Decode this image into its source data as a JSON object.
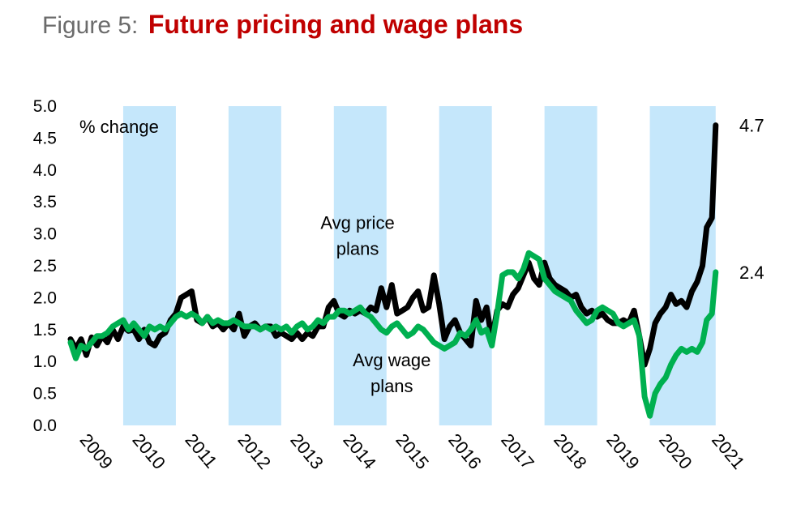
{
  "figure": {
    "prefix": "Figure 5:",
    "title": "Future pricing and wage plans"
  },
  "chart_data": {
    "type": "line",
    "ylim": [
      0,
      5
    ],
    "xlim": [
      2009.0,
      2021.7
    ],
    "yticks": [
      "0.0",
      "0.5",
      "1.0",
      "1.5",
      "2.0",
      "2.5",
      "3.0",
      "3.5",
      "4.0",
      "4.5",
      "5.0"
    ],
    "xticks": [
      "2009",
      "2010",
      "2011",
      "2012",
      "2013",
      "2014",
      "2015",
      "2016",
      "2017",
      "2018",
      "2019",
      "2020",
      "2021"
    ],
    "unit_label": "% change",
    "grid": false,
    "shaded_periods": [
      [
        2010.0,
        2011.0
      ],
      [
        2012.0,
        2013.0
      ],
      [
        2014.0,
        2015.0
      ],
      [
        2016.0,
        2017.0
      ],
      [
        2018.0,
        2019.0
      ],
      [
        2020.0,
        2021.25
      ]
    ],
    "shade_color": "#c5e7fb",
    "series": [
      {
        "name": "Avg price plans",
        "color": "#000000",
        "end_label": "4.7",
        "points": [
          [
            2009.0,
            1.35
          ],
          [
            2009.1,
            1.2
          ],
          [
            2009.2,
            1.35
          ],
          [
            2009.3,
            1.1
          ],
          [
            2009.4,
            1.38
          ],
          [
            2009.5,
            1.25
          ],
          [
            2009.6,
            1.4
          ],
          [
            2009.7,
            1.3
          ],
          [
            2009.8,
            1.5
          ],
          [
            2009.9,
            1.35
          ],
          [
            2010.0,
            1.55
          ],
          [
            2010.1,
            1.48
          ],
          [
            2010.2,
            1.5
          ],
          [
            2010.3,
            1.35
          ],
          [
            2010.4,
            1.5
          ],
          [
            2010.5,
            1.3
          ],
          [
            2010.6,
            1.25
          ],
          [
            2010.7,
            1.4
          ],
          [
            2010.8,
            1.45
          ],
          [
            2010.9,
            1.65
          ],
          [
            2011.0,
            1.75
          ],
          [
            2011.1,
            2.0
          ],
          [
            2011.2,
            2.05
          ],
          [
            2011.3,
            2.1
          ],
          [
            2011.4,
            1.65
          ],
          [
            2011.5,
            1.6
          ],
          [
            2011.6,
            1.7
          ],
          [
            2011.7,
            1.55
          ],
          [
            2011.8,
            1.6
          ],
          [
            2011.9,
            1.5
          ],
          [
            2012.0,
            1.6
          ],
          [
            2012.1,
            1.5
          ],
          [
            2012.2,
            1.75
          ],
          [
            2012.3,
            1.4
          ],
          [
            2012.4,
            1.55
          ],
          [
            2012.5,
            1.6
          ],
          [
            2012.6,
            1.5
          ],
          [
            2012.7,
            1.55
          ],
          [
            2012.8,
            1.55
          ],
          [
            2012.9,
            1.4
          ],
          [
            2013.0,
            1.45
          ],
          [
            2013.1,
            1.4
          ],
          [
            2013.2,
            1.35
          ],
          [
            2013.3,
            1.45
          ],
          [
            2013.4,
            1.35
          ],
          [
            2013.5,
            1.45
          ],
          [
            2013.6,
            1.4
          ],
          [
            2013.7,
            1.55
          ],
          [
            2013.8,
            1.55
          ],
          [
            2013.9,
            1.85
          ],
          [
            2014.0,
            1.95
          ],
          [
            2014.1,
            1.75
          ],
          [
            2014.2,
            1.7
          ],
          [
            2014.3,
            1.8
          ],
          [
            2014.4,
            1.75
          ],
          [
            2014.5,
            1.8
          ],
          [
            2014.6,
            1.75
          ],
          [
            2014.7,
            1.85
          ],
          [
            2014.8,
            1.8
          ],
          [
            2014.9,
            2.15
          ],
          [
            2015.0,
            1.85
          ],
          [
            2015.1,
            2.2
          ],
          [
            2015.2,
            1.75
          ],
          [
            2015.3,
            1.8
          ],
          [
            2015.4,
            1.85
          ],
          [
            2015.5,
            2.0
          ],
          [
            2015.6,
            2.1
          ],
          [
            2015.7,
            1.8
          ],
          [
            2015.8,
            1.85
          ],
          [
            2015.9,
            2.35
          ],
          [
            2016.0,
            1.9
          ],
          [
            2016.1,
            1.35
          ],
          [
            2016.2,
            1.55
          ],
          [
            2016.3,
            1.65
          ],
          [
            2016.4,
            1.45
          ],
          [
            2016.5,
            1.35
          ],
          [
            2016.6,
            1.25
          ],
          [
            2016.7,
            1.95
          ],
          [
            2016.8,
            1.65
          ],
          [
            2016.9,
            1.85
          ],
          [
            2017.0,
            1.35
          ],
          [
            2017.1,
            1.8
          ],
          [
            2017.2,
            1.9
          ],
          [
            2017.3,
            1.85
          ],
          [
            2017.4,
            2.05
          ],
          [
            2017.5,
            2.15
          ],
          [
            2017.6,
            2.35
          ],
          [
            2017.7,
            2.55
          ],
          [
            2017.8,
            2.3
          ],
          [
            2017.9,
            2.2
          ],
          [
            2018.0,
            2.55
          ],
          [
            2018.1,
            2.3
          ],
          [
            2018.2,
            2.2
          ],
          [
            2018.3,
            2.15
          ],
          [
            2018.4,
            2.1
          ],
          [
            2018.5,
            2.0
          ],
          [
            2018.6,
            2.05
          ],
          [
            2018.7,
            1.85
          ],
          [
            2018.8,
            1.75
          ],
          [
            2018.9,
            1.8
          ],
          [
            2019.0,
            1.7
          ],
          [
            2019.1,
            1.75
          ],
          [
            2019.2,
            1.65
          ],
          [
            2019.3,
            1.6
          ],
          [
            2019.4,
            1.6
          ],
          [
            2019.5,
            1.65
          ],
          [
            2019.6,
            1.6
          ],
          [
            2019.7,
            1.8
          ],
          [
            2019.8,
            1.4
          ],
          [
            2019.9,
            0.95
          ],
          [
            2020.0,
            1.2
          ],
          [
            2020.1,
            1.6
          ],
          [
            2020.2,
            1.75
          ],
          [
            2020.3,
            1.85
          ],
          [
            2020.4,
            2.05
          ],
          [
            2020.5,
            1.9
          ],
          [
            2020.6,
            1.95
          ],
          [
            2020.7,
            1.85
          ],
          [
            2020.8,
            2.1
          ],
          [
            2020.9,
            2.25
          ],
          [
            2021.0,
            2.5
          ],
          [
            2021.08,
            3.1
          ],
          [
            2021.18,
            3.25
          ],
          [
            2021.25,
            4.7
          ]
        ]
      },
      {
        "name": "Avg wage plans",
        "color": "#00b050",
        "end_label": "2.4",
        "points": [
          [
            2009.0,
            1.3
          ],
          [
            2009.1,
            1.05
          ],
          [
            2009.2,
            1.25
          ],
          [
            2009.3,
            1.2
          ],
          [
            2009.4,
            1.3
          ],
          [
            2009.5,
            1.4
          ],
          [
            2009.6,
            1.4
          ],
          [
            2009.7,
            1.45
          ],
          [
            2009.8,
            1.55
          ],
          [
            2009.9,
            1.6
          ],
          [
            2010.0,
            1.65
          ],
          [
            2010.1,
            1.5
          ],
          [
            2010.2,
            1.6
          ],
          [
            2010.3,
            1.5
          ],
          [
            2010.4,
            1.4
          ],
          [
            2010.5,
            1.55
          ],
          [
            2010.6,
            1.5
          ],
          [
            2010.7,
            1.55
          ],
          [
            2010.8,
            1.5
          ],
          [
            2010.9,
            1.6
          ],
          [
            2011.0,
            1.7
          ],
          [
            2011.1,
            1.75
          ],
          [
            2011.2,
            1.7
          ],
          [
            2011.3,
            1.75
          ],
          [
            2011.4,
            1.7
          ],
          [
            2011.5,
            1.6
          ],
          [
            2011.6,
            1.7
          ],
          [
            2011.7,
            1.6
          ],
          [
            2011.8,
            1.65
          ],
          [
            2011.9,
            1.6
          ],
          [
            2012.0,
            1.6
          ],
          [
            2012.1,
            1.65
          ],
          [
            2012.2,
            1.6
          ],
          [
            2012.3,
            1.55
          ],
          [
            2012.4,
            1.55
          ],
          [
            2012.5,
            1.55
          ],
          [
            2012.6,
            1.5
          ],
          [
            2012.7,
            1.55
          ],
          [
            2012.8,
            1.5
          ],
          [
            2012.9,
            1.55
          ],
          [
            2013.0,
            1.5
          ],
          [
            2013.1,
            1.55
          ],
          [
            2013.2,
            1.45
          ],
          [
            2013.3,
            1.55
          ],
          [
            2013.4,
            1.6
          ],
          [
            2013.5,
            1.5
          ],
          [
            2013.6,
            1.55
          ],
          [
            2013.7,
            1.65
          ],
          [
            2013.8,
            1.6
          ],
          [
            2013.9,
            1.7
          ],
          [
            2014.0,
            1.7
          ],
          [
            2014.1,
            1.8
          ],
          [
            2014.2,
            1.8
          ],
          [
            2014.3,
            1.75
          ],
          [
            2014.4,
            1.8
          ],
          [
            2014.5,
            1.85
          ],
          [
            2014.6,
            1.75
          ],
          [
            2014.7,
            1.7
          ],
          [
            2014.8,
            1.6
          ],
          [
            2014.9,
            1.5
          ],
          [
            2015.0,
            1.45
          ],
          [
            2015.1,
            1.55
          ],
          [
            2015.2,
            1.6
          ],
          [
            2015.3,
            1.5
          ],
          [
            2015.4,
            1.4
          ],
          [
            2015.5,
            1.45
          ],
          [
            2015.6,
            1.55
          ],
          [
            2015.7,
            1.5
          ],
          [
            2015.8,
            1.4
          ],
          [
            2015.9,
            1.3
          ],
          [
            2016.0,
            1.25
          ],
          [
            2016.1,
            1.2
          ],
          [
            2016.2,
            1.25
          ],
          [
            2016.3,
            1.3
          ],
          [
            2016.4,
            1.45
          ],
          [
            2016.5,
            1.4
          ],
          [
            2016.6,
            1.5
          ],
          [
            2016.7,
            1.65
          ],
          [
            2016.8,
            1.45
          ],
          [
            2016.9,
            1.5
          ],
          [
            2017.0,
            1.25
          ],
          [
            2017.1,
            1.75
          ],
          [
            2017.2,
            2.35
          ],
          [
            2017.3,
            2.4
          ],
          [
            2017.4,
            2.4
          ],
          [
            2017.5,
            2.3
          ],
          [
            2017.6,
            2.45
          ],
          [
            2017.7,
            2.7
          ],
          [
            2017.8,
            2.65
          ],
          [
            2017.9,
            2.6
          ],
          [
            2018.0,
            2.3
          ],
          [
            2018.1,
            2.2
          ],
          [
            2018.2,
            2.1
          ],
          [
            2018.3,
            2.05
          ],
          [
            2018.4,
            2.0
          ],
          [
            2018.5,
            1.95
          ],
          [
            2018.6,
            1.8
          ],
          [
            2018.7,
            1.7
          ],
          [
            2018.8,
            1.6
          ],
          [
            2018.9,
            1.65
          ],
          [
            2019.0,
            1.8
          ],
          [
            2019.1,
            1.85
          ],
          [
            2019.2,
            1.8
          ],
          [
            2019.3,
            1.75
          ],
          [
            2019.4,
            1.6
          ],
          [
            2019.5,
            1.55
          ],
          [
            2019.6,
            1.6
          ],
          [
            2019.7,
            1.65
          ],
          [
            2019.8,
            1.4
          ],
          [
            2019.9,
            0.45
          ],
          [
            2020.0,
            0.15
          ],
          [
            2020.1,
            0.5
          ],
          [
            2020.2,
            0.65
          ],
          [
            2020.3,
            0.75
          ],
          [
            2020.4,
            0.95
          ],
          [
            2020.5,
            1.1
          ],
          [
            2020.6,
            1.2
          ],
          [
            2020.7,
            1.15
          ],
          [
            2020.8,
            1.2
          ],
          [
            2020.9,
            1.15
          ],
          [
            2021.0,
            1.3
          ],
          [
            2021.08,
            1.65
          ],
          [
            2021.18,
            1.75
          ],
          [
            2021.25,
            2.4
          ]
        ]
      }
    ],
    "annotations": [
      {
        "lines": [
          "Avg price",
          "plans"
        ],
        "x": 2014.45,
        "y": 3.0
      },
      {
        "lines": [
          "Avg wage",
          "plans"
        ],
        "x": 2015.1,
        "y": 0.85
      }
    ]
  }
}
